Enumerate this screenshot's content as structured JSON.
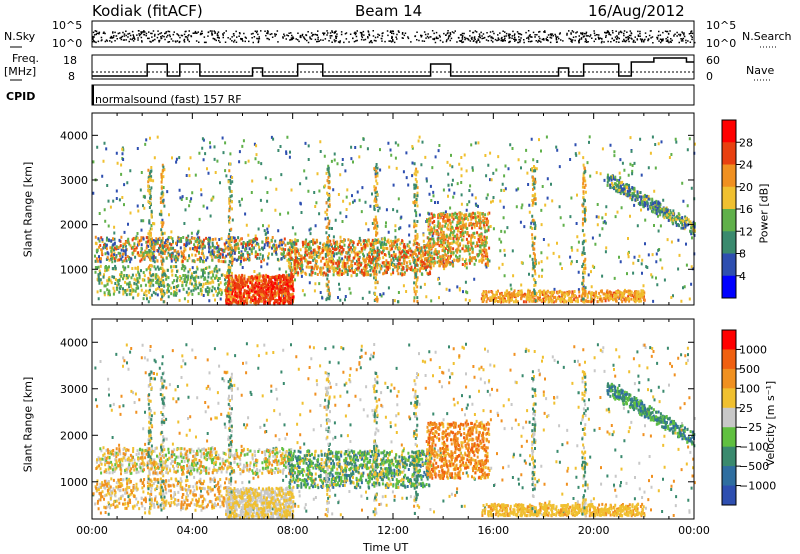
{
  "header": {
    "station": "Kodiak (fitACF)",
    "beam": "Beam 14",
    "date": "16/Aug/2012"
  },
  "noise_panel": {
    "left_label": "N.Sky",
    "right_label": "N.Search",
    "left_ticks": [
      "10^5",
      "10^0"
    ],
    "right_ticks": [
      "10^5",
      "10^0"
    ]
  },
  "freq_panel": {
    "left_label_line1": "Freq.",
    "left_label_line2": "[MHz]",
    "right_label": "Nave",
    "left_ticks": [
      "18",
      "8"
    ],
    "right_ticks": [
      "60",
      "0"
    ]
  },
  "cpid_panel": {
    "label": "CPID",
    "program": "normalsound (fast) 157 RF"
  },
  "colors": {
    "power_scale": [
      "#0000ff",
      "#2e4fb0",
      "#3a8a6e",
      "#60b04a",
      "#f0c030",
      "#f09020",
      "#e84010",
      "#ff0000"
    ],
    "velocity_scale": [
      "#2e4fb0",
      "#2f6ea0",
      "#3a8a6e",
      "#60c040",
      "#c8c8c8",
      "#f0c030",
      "#f09020",
      "#f06010",
      "#ff0000"
    ]
  },
  "chart_data": [
    {
      "type": "heatmap",
      "ylabel": "Slant Range [km]",
      "y_ticks": [
        "1000",
        "2000",
        "3000",
        "4000"
      ],
      "ylim": [
        200,
        4500
      ],
      "colorbar_label": "Power [dB]",
      "colorbar_ticks": [
        "4",
        "8",
        "12",
        "16",
        "20",
        "24",
        "28"
      ]
    },
    {
      "type": "heatmap",
      "ylabel": "Slant Range [km]",
      "y_ticks": [
        "1000",
        "2000",
        "3000",
        "4000"
      ],
      "ylim": [
        200,
        4500
      ],
      "xlabel": "Time UT",
      "x_ticks": [
        "00:00",
        "04:00",
        "08:00",
        "12:00",
        "16:00",
        "20:00",
        "00:00"
      ],
      "xlim": [
        0,
        24
      ],
      "colorbar_label": "Velocity [m s⁻¹]",
      "colorbar_ticks": [
        "1000",
        "500",
        "100",
        "25",
        "−25",
        "−100",
        "−500",
        "−1000"
      ]
    }
  ]
}
